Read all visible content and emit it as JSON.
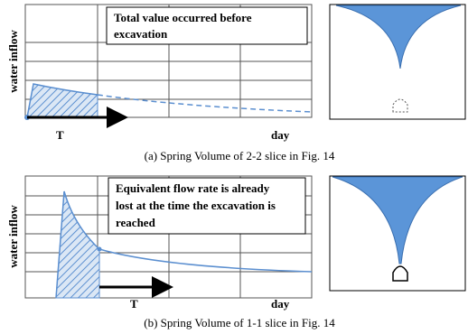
{
  "panels": [
    {
      "y_label": "water inflow",
      "annotation_lines": [
        "Total value occurred before",
        "excavation"
      ],
      "time_label": "T",
      "x_label": "day",
      "caption": "(a) Spring Volume of 2-2 slice in Fig. 14"
    },
    {
      "y_label": "water inflow",
      "annotation_lines": [
        "Equivalent flow rate is already",
        "lost at the time the excavation is",
        "reached"
      ],
      "time_label": "T",
      "x_label": "day",
      "caption": "(b) Spring Volume of 1-1 slice in Fig. 14"
    }
  ]
}
